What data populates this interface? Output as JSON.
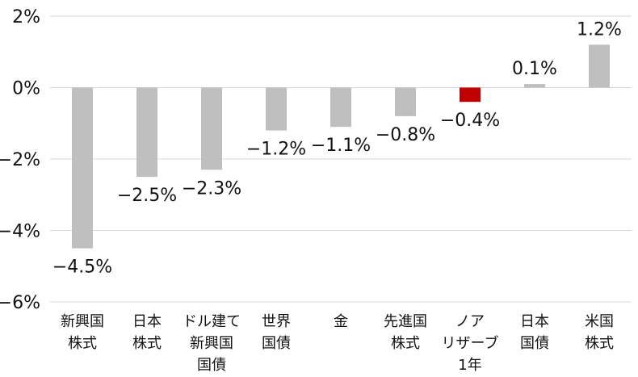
{
  "chart_data": {
    "type": "bar",
    "title": "",
    "xlabel": "",
    "ylabel": "",
    "ylim": [
      -6,
      2
    ],
    "yticks": [
      {
        "value": 2,
        "label": "2%"
      },
      {
        "value": 0,
        "label": "0%"
      },
      {
        "value": -2,
        "label": "−2%"
      },
      {
        "value": -4,
        "label": "−4%"
      },
      {
        "value": -6,
        "label": "−6%"
      }
    ],
    "grid": true,
    "legend": "none",
    "categories": [
      [
        "新興国",
        "株式"
      ],
      [
        "日本",
        "株式"
      ],
      [
        "ドル建て",
        "新興国",
        "国債"
      ],
      [
        "世界",
        "国債"
      ],
      [
        "金"
      ],
      [
        "先進国",
        "株式"
      ],
      [
        "ノア",
        "リザーブ",
        "1年"
      ],
      [
        "日本",
        "国債"
      ],
      [
        "米国",
        "株式"
      ]
    ],
    "values": [
      -4.5,
      -2.5,
      -2.3,
      -1.2,
      -1.1,
      -0.8,
      -0.4,
      0.1,
      1.2
    ],
    "value_labels": [
      "−4.5%",
      "−2.5%",
      "−2.3%",
      "−1.2%",
      "−1.1%",
      "−0.8%",
      "−0.4%",
      "0.1%",
      "1.2%"
    ],
    "colors": {
      "default": "#bfbfbf",
      "highlight": "#c00000",
      "grid": "#d9d9d9"
    },
    "highlight_index": 6
  }
}
